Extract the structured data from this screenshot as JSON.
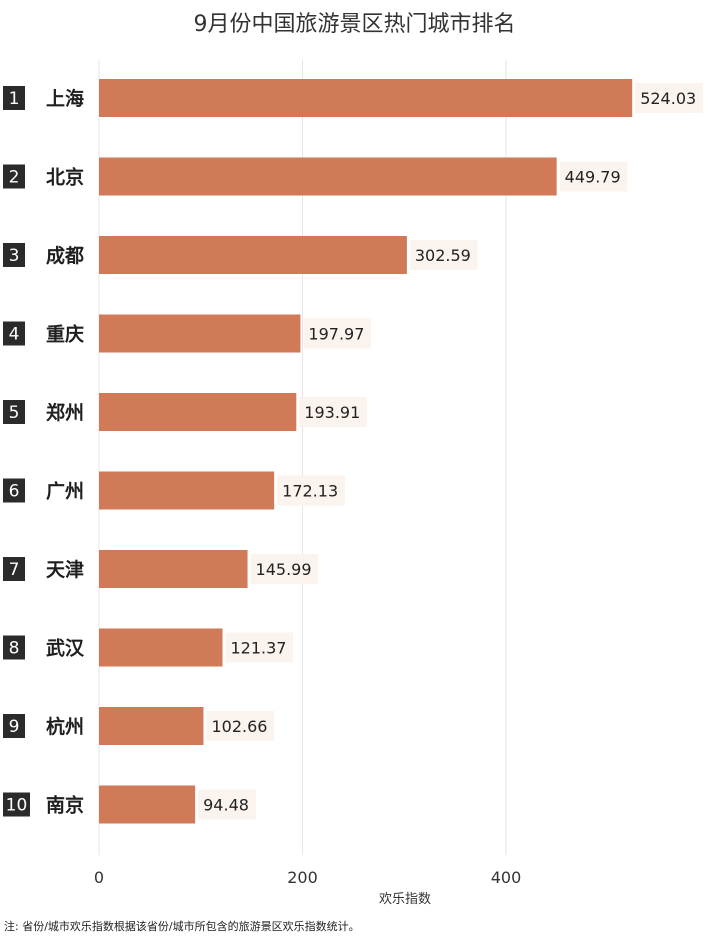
{
  "chart_data": {
    "type": "bar",
    "orientation": "horizontal",
    "title": "9月份中国旅游景区热门城市排名",
    "xlabel": "欢乐指数",
    "ylabel": "",
    "xlim": [
      0,
      540
    ],
    "xticks": [
      0,
      200,
      400
    ],
    "grid": true,
    "ranks": [
      "1",
      "2",
      "3",
      "4",
      "5",
      "6",
      "7",
      "8",
      "9",
      "10"
    ],
    "categories": [
      "上海",
      "北京",
      "成都",
      "重庆",
      "郑州",
      "广州",
      "天津",
      "武汉",
      "杭州",
      "南京"
    ],
    "values": [
      524.03,
      449.79,
      302.59,
      197.97,
      193.91,
      172.13,
      145.99,
      121.37,
      102.66,
      94.48
    ],
    "value_labels": [
      "524.03",
      "449.79",
      "302.59",
      "197.97",
      "193.91",
      "172.13",
      "145.99",
      "121.37",
      "102.66",
      "94.48"
    ],
    "bar_color": "#d07a58",
    "rank_badge_color": "#2b2b2b",
    "gridline_color": "#e6e6e6",
    "label_bg_color": "#fbf3ee"
  },
  "footnote": "注: 省份/城市欢乐指数根据该省份/城市所包含的旅游景区欢乐指数统计。"
}
